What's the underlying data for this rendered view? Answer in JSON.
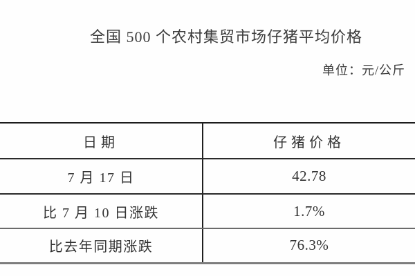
{
  "page": {
    "title": "全国 500 个农村集贸市场仔猪平均价格",
    "unit_label": "单位：元/公斤"
  },
  "table": {
    "headers": [
      "日期",
      "仔猪价格"
    ],
    "rows": [
      {
        "label": "7 月 17 日",
        "value": "42.78"
      },
      {
        "label": "比 7 月 10 日涨跌",
        "value": "1.7%"
      },
      {
        "label": "比去年同期涨跌",
        "value": "76.3%"
      }
    ]
  },
  "colors": {
    "background": "#fefefe",
    "text": "#333333",
    "border_dark": "#1c1c1c",
    "border_gray": "#7d7d7d"
  }
}
